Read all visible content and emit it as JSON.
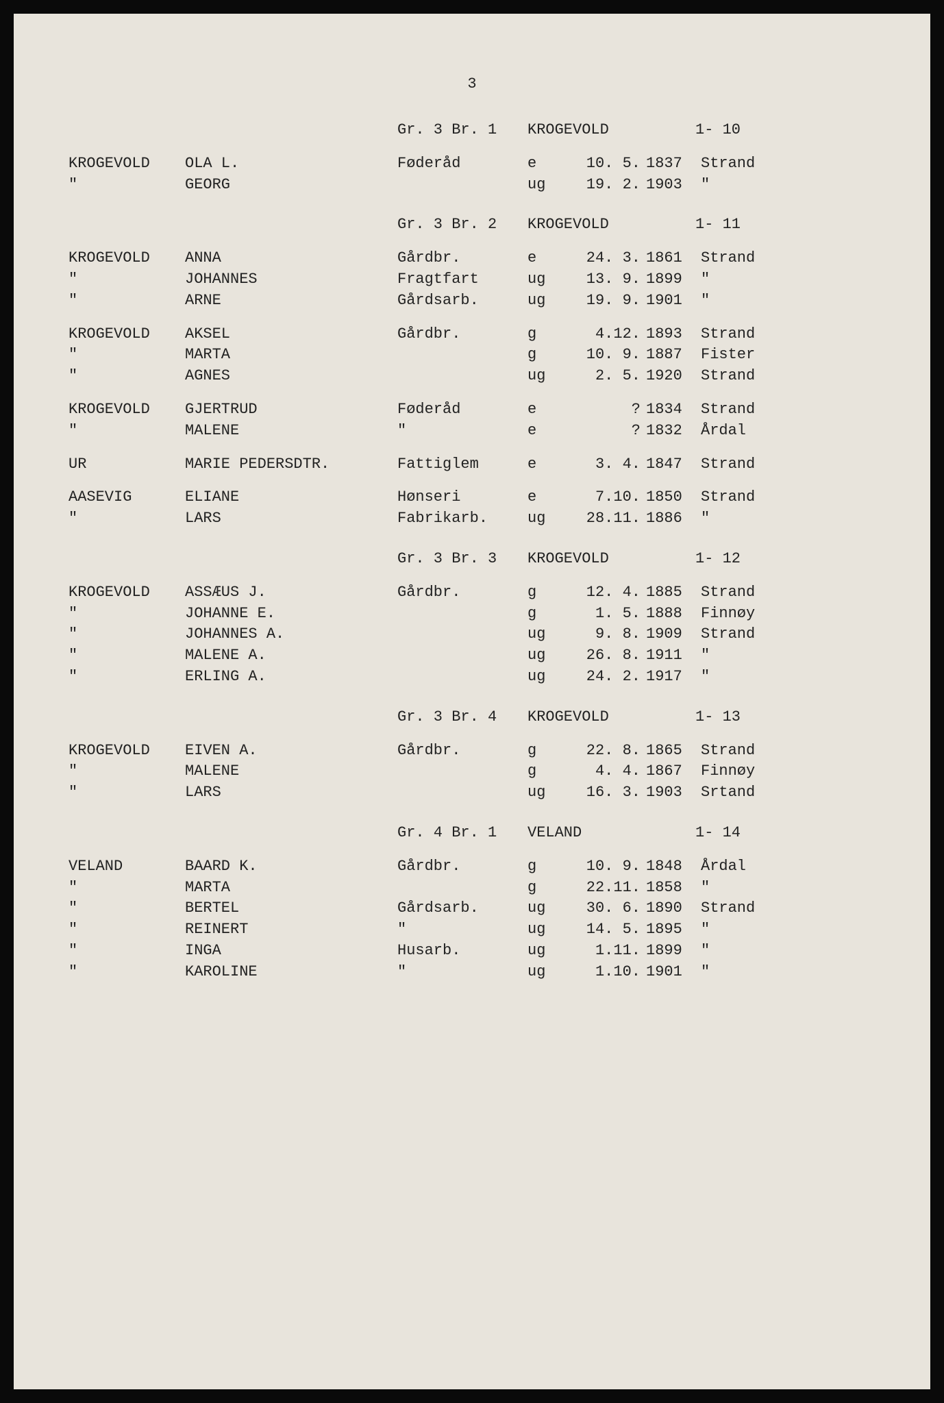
{
  "page_number": "3",
  "sections": [
    {
      "header": {
        "gr": "Gr. 3 Br. 1",
        "name": "KROGEVOLD",
        "code": "1- 10"
      },
      "groups": [
        [
          {
            "surname": "KROGEVOLD",
            "name": "OLA L.",
            "occ": "Føderåd",
            "status": "e",
            "date": "10. 5.",
            "year": "1837",
            "place": "Strand"
          },
          {
            "surname": "\"",
            "name": "GEORG",
            "occ": "",
            "status": "ug",
            "date": "19. 2.",
            "year": "1903",
            "place": "\""
          }
        ]
      ]
    },
    {
      "header": {
        "gr": "Gr. 3 Br. 2",
        "name": "KROGEVOLD",
        "code": "1- 11"
      },
      "groups": [
        [
          {
            "surname": "KROGEVOLD",
            "name": "ANNA",
            "occ": "Gårdbr.",
            "status": "e",
            "date": "24. 3.",
            "year": "1861",
            "place": "Strand"
          },
          {
            "surname": "\"",
            "name": "JOHANNES",
            "occ": "Fragtfart",
            "status": "ug",
            "date": "13. 9.",
            "year": "1899",
            "place": "\""
          },
          {
            "surname": "\"",
            "name": "ARNE",
            "occ": "Gårdsarb.",
            "status": "ug",
            "date": "19. 9.",
            "year": "1901",
            "place": "\""
          }
        ],
        [
          {
            "surname": "KROGEVOLD",
            "name": "AKSEL",
            "occ": "Gårdbr.",
            "status": "g",
            "date": "4.12.",
            "year": "1893",
            "place": "Strand"
          },
          {
            "surname": "\"",
            "name": "MARTA",
            "occ": "",
            "status": "g",
            "date": "10. 9.",
            "year": "1887",
            "place": "Fister"
          },
          {
            "surname": "\"",
            "name": "AGNES",
            "occ": "",
            "status": "ug",
            "date": "2. 5.",
            "year": "1920",
            "place": "Strand"
          }
        ],
        [
          {
            "surname": "KROGEVOLD",
            "name": "GJERTRUD",
            "occ": "Føderåd",
            "status": "e",
            "date": "?",
            "year": "1834",
            "place": "Strand"
          },
          {
            "surname": "\"",
            "name": "MALENE",
            "occ": "\"",
            "status": "e",
            "date": "?",
            "year": "1832",
            "place": "Årdal"
          }
        ],
        [
          {
            "surname": "UR",
            "name": "MARIE PEDERSDTR.",
            "occ": "Fattiglem",
            "status": "e",
            "date": "3. 4.",
            "year": "1847",
            "place": "Strand"
          }
        ],
        [
          {
            "surname": "AASEVIG",
            "name": "ELIANE",
            "occ": "Hønseri",
            "status": "e",
            "date": "7.10.",
            "year": "1850",
            "place": "Strand"
          },
          {
            "surname": "\"",
            "name": "LARS",
            "occ": "Fabrikarb.",
            "status": "ug",
            "date": "28.11.",
            "year": "1886",
            "place": "\""
          }
        ]
      ]
    },
    {
      "header": {
        "gr": "Gr. 3 Br. 3",
        "name": "KROGEVOLD",
        "code": "1- 12"
      },
      "groups": [
        [
          {
            "surname": "KROGEVOLD",
            "name": "ASSÆUS J.",
            "occ": "Gårdbr.",
            "status": "g",
            "date": "12. 4.",
            "year": "1885",
            "place": "Strand"
          },
          {
            "surname": "\"",
            "name": "JOHANNE E.",
            "occ": "",
            "status": "g",
            "date": "1. 5.",
            "year": "1888",
            "place": "Finnøy"
          },
          {
            "surname": "\"",
            "name": "JOHANNES A.",
            "occ": "",
            "status": "ug",
            "date": "9. 8.",
            "year": "1909",
            "place": "Strand"
          },
          {
            "surname": "\"",
            "name": "MALENE A.",
            "occ": "",
            "status": "ug",
            "date": "26. 8.",
            "year": "1911",
            "place": "\""
          },
          {
            "surname": "\"",
            "name": "ERLING A.",
            "occ": "",
            "status": "ug",
            "date": "24. 2.",
            "year": "1917",
            "place": "\""
          }
        ]
      ]
    },
    {
      "header": {
        "gr": "Gr. 3 Br. 4",
        "name": "KROGEVOLD",
        "code": "1- 13"
      },
      "groups": [
        [
          {
            "surname": "KROGEVOLD",
            "name": "EIVEN A.",
            "occ": "Gårdbr.",
            "status": "g",
            "date": "22. 8.",
            "year": "1865",
            "place": "Strand"
          },
          {
            "surname": "\"",
            "name": "MALENE",
            "occ": "",
            "status": "g",
            "date": "4. 4.",
            "year": "1867",
            "place": "Finnøy"
          },
          {
            "surname": "\"",
            "name": "LARS",
            "occ": "",
            "status": "ug",
            "date": "16. 3.",
            "year": "1903",
            "place": "Srtand"
          }
        ]
      ]
    },
    {
      "header": {
        "gr": "Gr. 4 Br. 1",
        "name": "VELAND",
        "code": "1- 14"
      },
      "groups": [
        [
          {
            "surname": "VELAND",
            "name": "BAARD K.",
            "occ": "Gårdbr.",
            "status": "g",
            "date": "10. 9.",
            "year": "1848",
            "place": "Årdal"
          },
          {
            "surname": "\"",
            "name": "MARTA",
            "occ": "",
            "status": "g",
            "date": "22.11.",
            "year": "1858",
            "place": "\""
          },
          {
            "surname": "\"",
            "name": "BERTEL",
            "occ": "Gårdsarb.",
            "status": "ug",
            "date": "30. 6.",
            "year": "1890",
            "place": "Strand"
          },
          {
            "surname": "\"",
            "name": "REINERT",
            "occ": "\"",
            "status": "ug",
            "date": "14. 5.",
            "year": "1895",
            "place": "\""
          },
          {
            "surname": "\"",
            "name": "INGA",
            "occ": "Husarb.",
            "status": "ug",
            "date": "1.11.",
            "year": "1899",
            "place": "\""
          },
          {
            "surname": "\"",
            "name": "KAROLINE",
            "occ": "\"",
            "status": "ug",
            "date": "1.10.",
            "year": "1901",
            "place": "\""
          }
        ]
      ]
    }
  ]
}
